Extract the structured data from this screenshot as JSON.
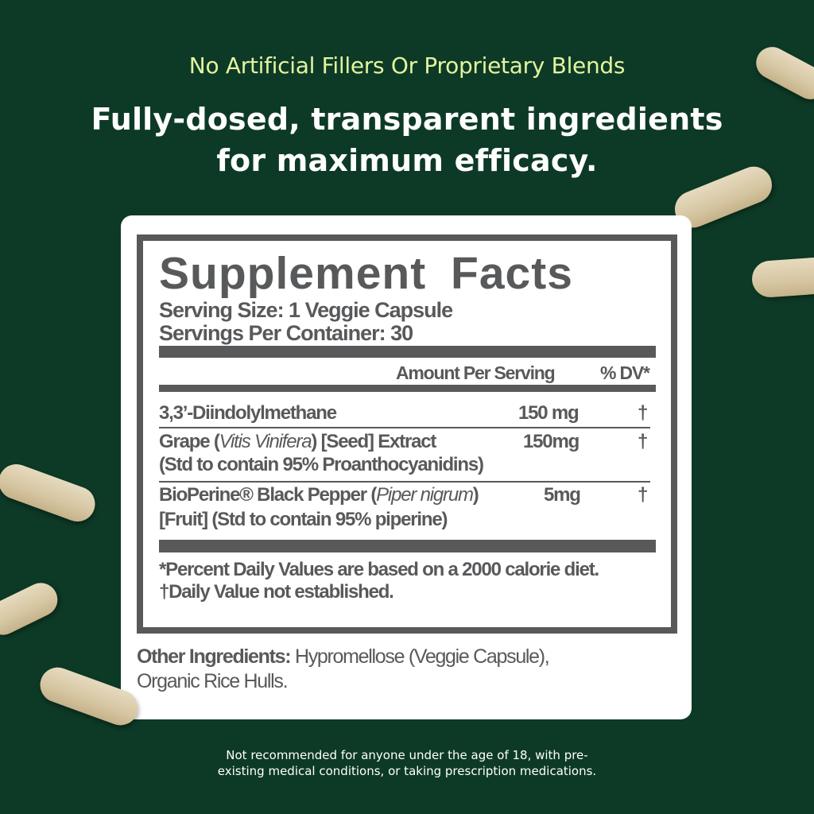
{
  "tagline": "No Artificial Fillers Or Proprietary Blends",
  "headline": {
    "line1": "Fully-dosed, transparent ingredients",
    "line2": "for maximum efficacy."
  },
  "label": {
    "title": "Supplement Facts",
    "serving_size": "Serving Size: 1 Veggie Capsule",
    "servings_per_container": "Servings Per Container: 30",
    "col_amount": "Amount Per Serving",
    "col_dv": "% DV*",
    "rows": [
      {
        "name": "3,3’-Diindolylmethane",
        "amount": "150 mg",
        "dv": "†"
      },
      {
        "name_pre": "Grape (",
        "name_italic": "Vitis Vinifera",
        "name_post": ") [Seed] Extract",
        "detail": "(Std to contain 95% Proanthocyanidins)",
        "amount": "150mg",
        "dv": "†"
      },
      {
        "name_pre": "BioPerine® Black Pepper (",
        "name_italic": "Piper nigrum",
        "name_post": ")",
        "detail": "[Fruit] (Std to contain 95% piperine)",
        "amount": "5mg",
        "dv": "†"
      }
    ],
    "footnote1": "*Percent Daily Values are based on a 2000 calorie diet.",
    "footnote2": "†Daily Value not established."
  },
  "other_ingredients": {
    "label": "Other Ingredients:",
    "value": " Hypromellose (Veggie Capsule),",
    "value2": "Organic Rice Hulls."
  },
  "disclaimer": {
    "line1": "Not recommended for anyone under the age of 18, with pre-",
    "line2": "existing medical conditions, or taking prescription medications."
  },
  "colors": {
    "background": "#0d3a26",
    "tagline": "#e3f3a0",
    "label_gray": "#58595b",
    "capsule": "#d6c6a2"
  }
}
